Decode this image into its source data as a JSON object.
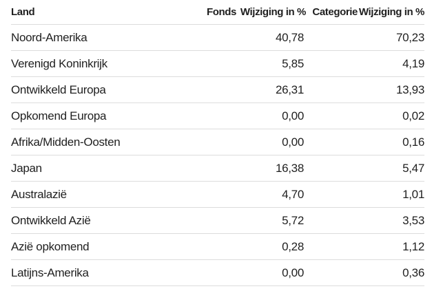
{
  "table": {
    "headers": {
      "land": "Land",
      "fonds": "Fonds",
      "wijziging_fonds": "Wijziging in %",
      "categorie": "Categorie",
      "wijziging_categorie": "Wijziging in %"
    },
    "rows": [
      {
        "land": "Noord-Amerika",
        "fonds": "40,78",
        "categorie": "70,23"
      },
      {
        "land": "Verenigd Koninkrijk",
        "fonds": "5,85",
        "categorie": "4,19"
      },
      {
        "land": "Ontwikkeld Europa",
        "fonds": "26,31",
        "categorie": "13,93"
      },
      {
        "land": "Opkomend Europa",
        "fonds": "0,00",
        "categorie": "0,02"
      },
      {
        "land": "Afrika/Midden-Oosten",
        "fonds": "0,00",
        "categorie": "0,16"
      },
      {
        "land": "Japan",
        "fonds": "16,38",
        "categorie": "5,47"
      },
      {
        "land": "Australazië",
        "fonds": "4,70",
        "categorie": "1,01"
      },
      {
        "land": "Ontwikkeld Azië",
        "fonds": "5,72",
        "categorie": "3,53"
      },
      {
        "land": "Azië opkomend",
        "fonds": "0,28",
        "categorie": "1,12"
      },
      {
        "land": "Latijns-Amerika",
        "fonds": "0,00",
        "categorie": "0,36"
      }
    ]
  }
}
